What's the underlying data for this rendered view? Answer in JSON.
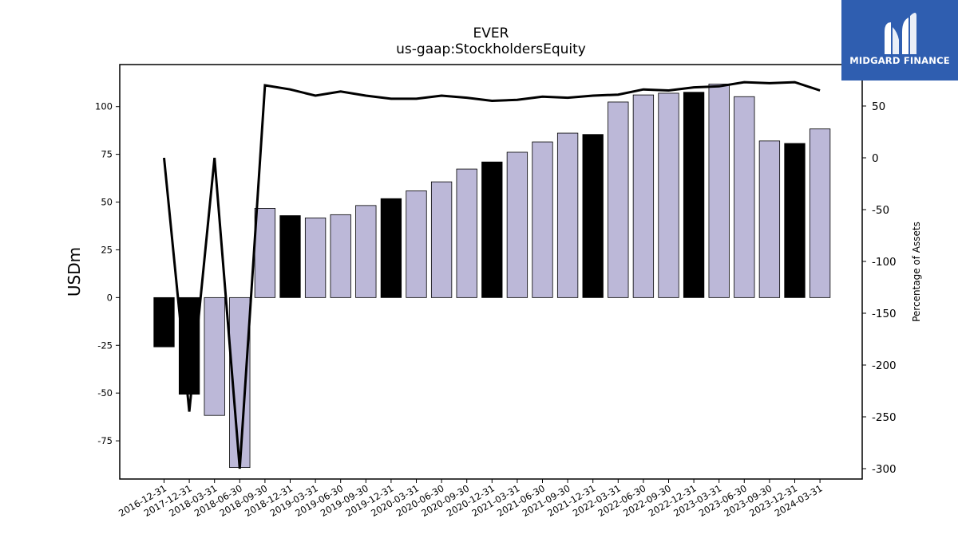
{
  "brand": {
    "name": "MIDGARD FINANCE",
    "color": "#2f5eb0"
  },
  "chart_data": {
    "type": "bar",
    "title": "EVER",
    "subtitle": "us-gaap:StockholdersEquity",
    "ylabel": "USDm",
    "y2label": "Percentage of Assets",
    "ylim": [
      -95,
      122
    ],
    "y2lim": [
      -310,
      90
    ],
    "yticks": [
      -75,
      -50,
      -25,
      0,
      25,
      50,
      75,
      100
    ],
    "y2ticks": [
      -300,
      -250,
      -200,
      -150,
      -100,
      -50,
      0,
      50
    ],
    "categories": [
      "2016-12-31",
      "2017-12-31",
      "2018-03-31",
      "2018-06-30",
      "2018-09-30",
      "2018-12-31",
      "2019-03-31",
      "2019-06-30",
      "2019-09-30",
      "2019-12-31",
      "2020-03-31",
      "2020-06-30",
      "2020-09-30",
      "2020-12-31",
      "2021-03-31",
      "2021-06-30",
      "2021-09-30",
      "2021-12-31",
      "2022-03-31",
      "2022-06-30",
      "2022-09-30",
      "2022-12-31",
      "2023-03-31",
      "2023-06-30",
      "2023-09-30",
      "2023-12-31",
      "2024-03-31"
    ],
    "series": [
      {
        "type": "bar",
        "axis": "left",
        "values": [
          -25.8,
          -50.6,
          -61.7,
          -89.0,
          46.7,
          42.9,
          41.7,
          43.4,
          48.2,
          51.8,
          55.9,
          60.6,
          67.3,
          71.0,
          76.1,
          81.5,
          86.1,
          85.4,
          102.4,
          106.1,
          107.0,
          107.5,
          111.8,
          105.2,
          82.0,
          80.7,
          88.3
        ]
      },
      {
        "type": "line",
        "axis": "right",
        "color": "#000000",
        "values": [
          0,
          -245,
          0,
          -300,
          70,
          66,
          60,
          64,
          60,
          57,
          57,
          60,
          58,
          55,
          56,
          59,
          58,
          60,
          61,
          66,
          65,
          68,
          69,
          73,
          72,
          73,
          65
        ]
      }
    ],
    "bar_colors": {
      "annual": "#000000",
      "quarterly": "#bcb8d8"
    },
    "annual_markers": [
      "2016-12-31",
      "2017-12-31",
      "2018-12-31",
      "2019-12-31",
      "2020-12-31",
      "2021-12-31",
      "2022-12-31",
      "2023-12-31"
    ],
    "grid": false,
    "legend": "none"
  }
}
